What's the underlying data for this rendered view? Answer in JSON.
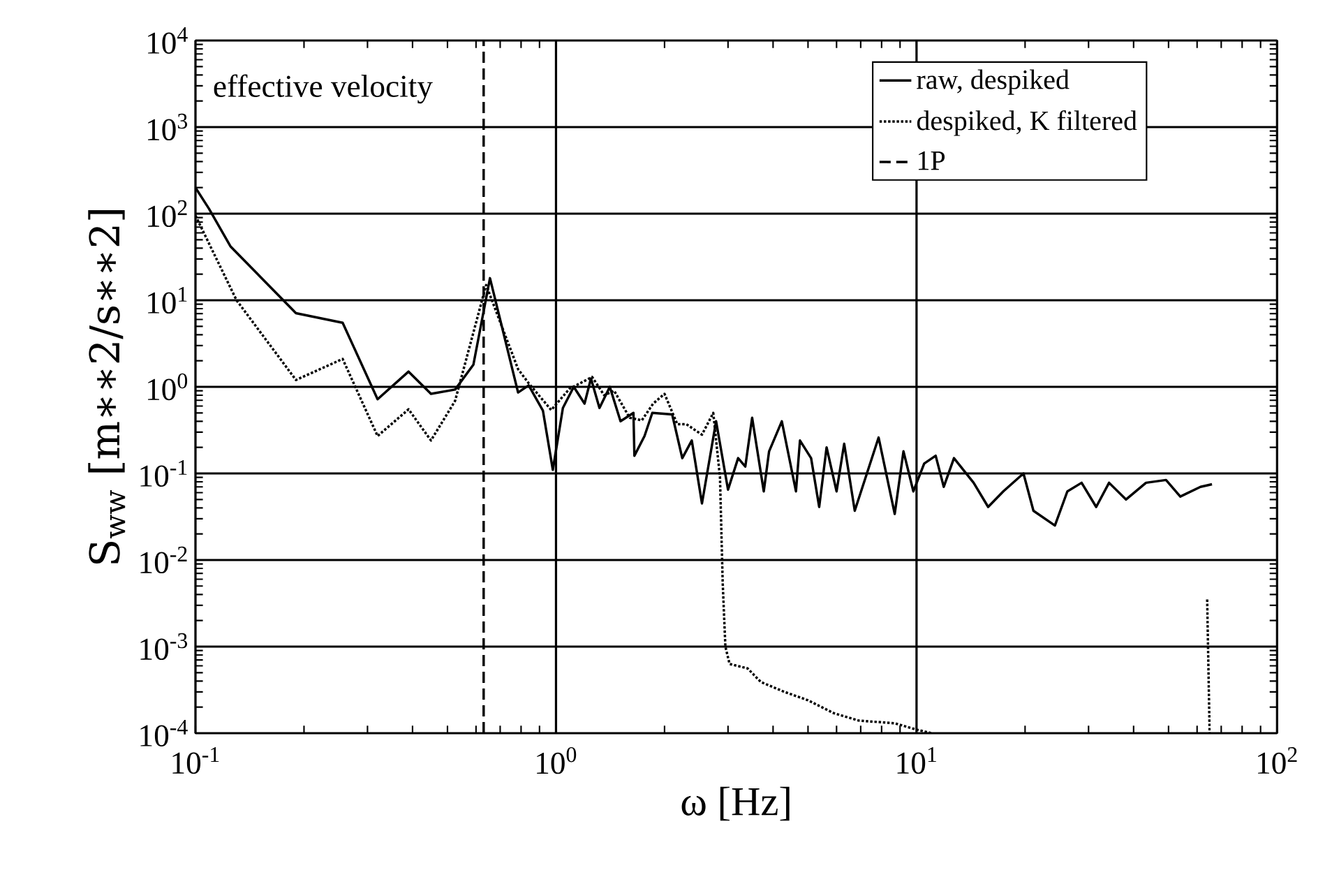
{
  "chart_data": {
    "type": "line",
    "xlabel": "ω [Hz]",
    "ylabel": "S$_{ww}$ [m∗∗2/s∗∗2]",
    "log": "xy",
    "grid": true,
    "legend": "top right",
    "marker": "none",
    "xlim": [
      0.1,
      100
    ],
    "ylim": [
      0.0001,
      10000
    ],
    "xticks": [
      {
        "value": 0.1,
        "label": "10$^{-1}$"
      },
      {
        "value": 1,
        "label": "10$^{0}$"
      },
      {
        "value": 10,
        "label": "10$^{1}$"
      },
      {
        "value": 100,
        "label": "10$^{2}$"
      }
    ],
    "yticks": [
      {
        "value": 0.0001,
        "label": "10$^{-4}$"
      },
      {
        "value": 0.001,
        "label": "10$^{-3}$"
      },
      {
        "value": 0.01,
        "label": "10$^{-2}$"
      },
      {
        "value": 0.1,
        "label": "10$^{-1}$"
      },
      {
        "value": 1,
        "label": "10$^{0}$"
      },
      {
        "value": 10,
        "label": "10$^{1}$"
      },
      {
        "value": 100,
        "label": "10$^{2}$"
      },
      {
        "value": 1000,
        "label": "10$^{3}$"
      },
      {
        "value": 10000,
        "label": "10$^{4}$"
      }
    ],
    "annotations": [
      "effective velocity"
    ],
    "series": [
      {
        "name": "raw, despiked",
        "color": "#000000",
        "line_style": "solid",
        "x": [
          0.1,
          0.109,
          0.125,
          0.19,
          0.256,
          0.32,
          0.39,
          0.45,
          0.525,
          0.59,
          0.656,
          0.785,
          0.84,
          0.92,
          0.98,
          1.045,
          1.12,
          1.2,
          1.25,
          1.32,
          1.41,
          1.51,
          1.64,
          1.65,
          1.76,
          1.85,
          2.1,
          2.24,
          2.38,
          2.54,
          2.78,
          3.0,
          3.2,
          3.35,
          3.5,
          3.77,
          3.9,
          4.23,
          4.63,
          4.75,
          5.1,
          5.37,
          5.63,
          6.0,
          6.3,
          6.74,
          7.85,
          8.7,
          9.2,
          9.8,
          10.5,
          11.3,
          11.9,
          12.7,
          14.4,
          15.8,
          17.4,
          19.8,
          21.1,
          24.2,
          26.2,
          28.7,
          31.5,
          34.2,
          38.1,
          43.3,
          49.2,
          53.9,
          61.3,
          66
        ],
        "values": [
          200,
          114,
          42,
          7.1,
          5.5,
          0.72,
          1.5,
          0.83,
          0.93,
          1.8,
          18,
          0.86,
          1.04,
          0.53,
          0.11,
          0.57,
          1.0,
          0.64,
          1.25,
          0.57,
          1.0,
          0.4,
          0.5,
          0.16,
          0.27,
          0.5,
          0.48,
          0.15,
          0.24,
          0.045,
          0.4,
          0.065,
          0.15,
          0.12,
          0.44,
          0.062,
          0.18,
          0.4,
          0.062,
          0.24,
          0.15,
          0.041,
          0.2,
          0.062,
          0.22,
          0.037,
          0.26,
          0.034,
          0.18,
          0.062,
          0.13,
          0.16,
          0.07,
          0.15,
          0.078,
          0.041,
          0.062,
          0.1,
          0.037,
          0.025,
          0.062,
          0.078,
          0.041,
          0.078,
          0.05,
          0.078,
          0.084,
          0.054,
          0.07,
          0.075
        ]
      },
      {
        "name": "despiked, K filtered",
        "color": "#000000",
        "line_style": "dotted",
        "x": [
          0.1,
          0.13,
          0.19,
          0.256,
          0.32,
          0.39,
          0.45,
          0.525,
          0.64,
          0.785,
          0.84,
          0.97,
          1.09,
          1.26,
          1.36,
          1.45,
          1.6,
          1.73,
          1.86,
          2.0,
          2.17,
          2.3,
          2.54,
          2.73,
          2.85,
          2.9,
          2.95,
          3.03,
          3.4,
          3.7,
          4.3,
          5.0,
          5.9,
          6.9,
          8.7,
          10,
          11,
          63,
          64,
          65
        ],
        "values": [
          95,
          10,
          1.2,
          2.1,
          0.27,
          0.55,
          0.24,
          0.69,
          15,
          1.6,
          1.1,
          0.54,
          0.95,
          1.3,
          0.8,
          0.9,
          0.44,
          0.41,
          0.64,
          0.83,
          0.37,
          0.37,
          0.28,
          0.5,
          0.09,
          0.0054,
          0.001,
          0.00063,
          0.00056,
          0.00039,
          0.0003,
          0.00024,
          0.00017,
          0.00014,
          0.00013,
          0.00011,
          0.0001,
          null,
          0.0035,
          0.0001
        ]
      },
      {
        "name": "1P",
        "color": "#000000",
        "line_style": "dashed",
        "x": [
          0.63,
          0.63
        ],
        "values": [
          0.0001,
          10000
        ]
      }
    ]
  }
}
